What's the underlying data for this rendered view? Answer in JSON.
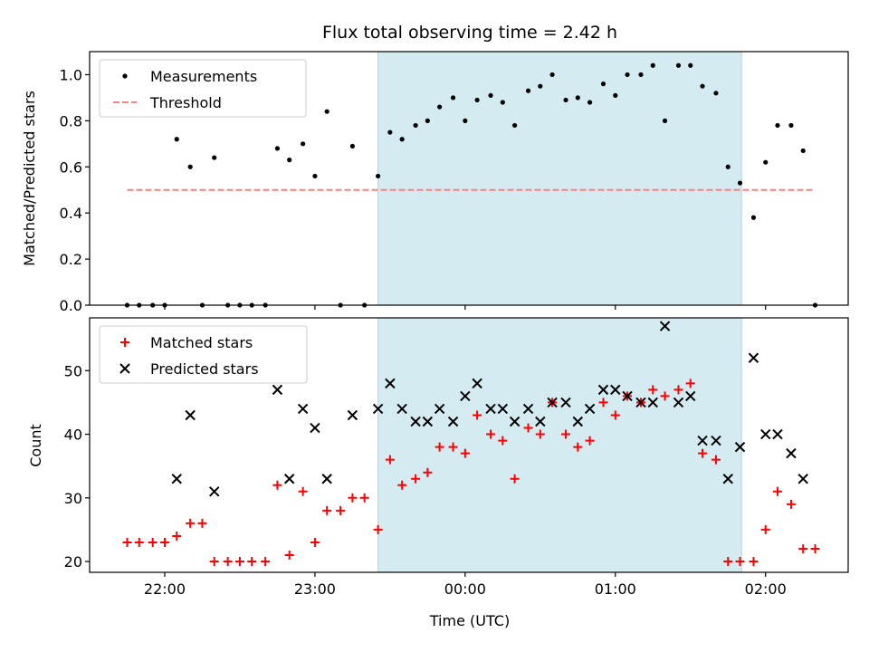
{
  "chart_data": {
    "title": "Flux total observing time = 2.42 h",
    "xlabel": "Time (UTC)",
    "xlim_hours": [
      -2.5,
      2.55
    ],
    "x_ticks": [
      {
        "value": -2.0,
        "label": "22:00"
      },
      {
        "value": -1.0,
        "label": "23:00"
      },
      {
        "value": 0.0,
        "label": "00:00"
      },
      {
        "value": 1.0,
        "label": "01:00"
      },
      {
        "value": 2.0,
        "label": "02:00"
      }
    ],
    "observing_window_hours": [
      -0.58,
      1.84
    ],
    "highlight_color": "#add8e6",
    "panels": [
      {
        "type": "scatter",
        "ylabel": "Matched/Predicted stars",
        "ylim": [
          0.0,
          1.1
        ],
        "y_ticks": [
          "0.0",
          "0.2",
          "0.4",
          "0.6",
          "0.8",
          "1.0"
        ],
        "legend_position": "upper left",
        "series": [
          {
            "name": "Measurements",
            "marker": "dot",
            "color": "#000000",
            "points": [
              [
                -2.25,
                0.0
              ],
              [
                -2.17,
                0.0
              ],
              [
                -2.08,
                0.0
              ],
              [
                -2.0,
                0.0
              ],
              [
                -1.92,
                0.72
              ],
              [
                -1.83,
                0.6
              ],
              [
                -1.75,
                0.0
              ],
              [
                -1.67,
                0.64
              ],
              [
                -1.58,
                0.0
              ],
              [
                -1.5,
                0.0
              ],
              [
                -1.42,
                0.0
              ],
              [
                -1.33,
                0.0
              ],
              [
                -1.25,
                0.68
              ],
              [
                -1.17,
                0.63
              ],
              [
                -1.08,
                0.7
              ],
              [
                -1.0,
                0.56
              ],
              [
                -0.92,
                0.84
              ],
              [
                -0.83,
                0.0
              ],
              [
                -0.75,
                0.69
              ],
              [
                -0.67,
                0.0
              ],
              [
                -0.58,
                0.56
              ],
              [
                -0.5,
                0.75
              ],
              [
                -0.42,
                0.72
              ],
              [
                -0.33,
                0.78
              ],
              [
                -0.25,
                0.8
              ],
              [
                -0.17,
                0.86
              ],
              [
                -0.08,
                0.9
              ],
              [
                0.0,
                0.8
              ],
              [
                0.08,
                0.89
              ],
              [
                0.17,
                0.91
              ],
              [
                0.25,
                0.88
              ],
              [
                0.33,
                0.78
              ],
              [
                0.42,
                0.93
              ],
              [
                0.5,
                0.95
              ],
              [
                0.58,
                1.0
              ],
              [
                0.67,
                0.89
              ],
              [
                0.75,
                0.9
              ],
              [
                0.83,
                0.88
              ],
              [
                0.92,
                0.96
              ],
              [
                1.0,
                0.91
              ],
              [
                1.08,
                1.0
              ],
              [
                1.17,
                1.0
              ],
              [
                1.25,
                1.04
              ],
              [
                1.33,
                0.8
              ],
              [
                1.42,
                1.04
              ],
              [
                1.5,
                1.04
              ],
              [
                1.58,
                0.95
              ],
              [
                1.67,
                0.92
              ],
              [
                1.75,
                0.6
              ],
              [
                1.83,
                0.53
              ],
              [
                1.92,
                0.38
              ],
              [
                2.0,
                0.62
              ],
              [
                2.08,
                0.78
              ],
              [
                2.17,
                0.78
              ],
              [
                2.25,
                0.67
              ],
              [
                2.33,
                0.0
              ]
            ]
          },
          {
            "name": "Threshold",
            "marker": "dashed-line",
            "color": "#ff7f7f",
            "points": [
              [
                -2.25,
                0.5
              ],
              [
                2.33,
                0.5
              ]
            ]
          }
        ]
      },
      {
        "type": "scatter",
        "ylabel": "Count",
        "ylim": [
          18.3,
          58.3
        ],
        "y_ticks": [
          "20",
          "30",
          "40",
          "50"
        ],
        "legend_position": "upper left",
        "series": [
          {
            "name": "Matched stars",
            "marker": "plus",
            "color": "#ff0000",
            "points": [
              [
                -2.25,
                23
              ],
              [
                -2.17,
                23
              ],
              [
                -2.08,
                23
              ],
              [
                -2.0,
                23
              ],
              [
                -1.92,
                24
              ],
              [
                -1.83,
                26
              ],
              [
                -1.75,
                26
              ],
              [
                -1.67,
                20
              ],
              [
                -1.58,
                20
              ],
              [
                -1.5,
                20
              ],
              [
                -1.42,
                20
              ],
              [
                -1.33,
                20
              ],
              [
                -1.25,
                32
              ],
              [
                -1.17,
                21
              ],
              [
                -1.08,
                31
              ],
              [
                -1.0,
                23
              ],
              [
                -0.92,
                28
              ],
              [
                -0.83,
                28
              ],
              [
                -0.75,
                30
              ],
              [
                -0.67,
                30
              ],
              [
                -0.58,
                25
              ],
              [
                -0.5,
                36
              ],
              [
                -0.42,
                32
              ],
              [
                -0.33,
                33
              ],
              [
                -0.25,
                34
              ],
              [
                -0.17,
                38
              ],
              [
                -0.08,
                38
              ],
              [
                0.0,
                37
              ],
              [
                0.08,
                43
              ],
              [
                0.17,
                40
              ],
              [
                0.25,
                39
              ],
              [
                0.33,
                33
              ],
              [
                0.42,
                41
              ],
              [
                0.5,
                40
              ],
              [
                0.58,
                45
              ],
              [
                0.67,
                40
              ],
              [
                0.75,
                38
              ],
              [
                0.83,
                39
              ],
              [
                0.92,
                45
              ],
              [
                1.0,
                43
              ],
              [
                1.08,
                46
              ],
              [
                1.17,
                45
              ],
              [
                1.25,
                47
              ],
              [
                1.33,
                46
              ],
              [
                1.42,
                47
              ],
              [
                1.5,
                48
              ],
              [
                1.58,
                37
              ],
              [
                1.67,
                36
              ],
              [
                1.75,
                20
              ],
              [
                1.83,
                20
              ],
              [
                1.92,
                20
              ],
              [
                2.0,
                25
              ],
              [
                2.08,
                31
              ],
              [
                2.17,
                29
              ],
              [
                2.25,
                22
              ],
              [
                2.33,
                22
              ]
            ]
          },
          {
            "name": "Predicted stars",
            "marker": "x",
            "color": "#000000",
            "points": [
              [
                -1.92,
                33
              ],
              [
                -1.83,
                43
              ],
              [
                -1.67,
                31
              ],
              [
                -1.25,
                47
              ],
              [
                -1.17,
                33
              ],
              [
                -1.08,
                44
              ],
              [
                -1.0,
                41
              ],
              [
                -0.92,
                33
              ],
              [
                -0.75,
                43
              ],
              [
                -0.58,
                44
              ],
              [
                -0.5,
                48
              ],
              [
                -0.42,
                44
              ],
              [
                -0.33,
                42
              ],
              [
                -0.25,
                42
              ],
              [
                -0.17,
                44
              ],
              [
                -0.08,
                42
              ],
              [
                0.0,
                46
              ],
              [
                0.08,
                48
              ],
              [
                0.17,
                44
              ],
              [
                0.25,
                44
              ],
              [
                0.33,
                42
              ],
              [
                0.42,
                44
              ],
              [
                0.5,
                42
              ],
              [
                0.58,
                45
              ],
              [
                0.67,
                45
              ],
              [
                0.75,
                42
              ],
              [
                0.83,
                44
              ],
              [
                0.92,
                47
              ],
              [
                1.0,
                47
              ],
              [
                1.08,
                46
              ],
              [
                1.17,
                45
              ],
              [
                1.25,
                45
              ],
              [
                1.33,
                57
              ],
              [
                1.42,
                45
              ],
              [
                1.5,
                46
              ],
              [
                1.58,
                39
              ],
              [
                1.67,
                39
              ],
              [
                1.75,
                33
              ],
              [
                1.83,
                38
              ],
              [
                1.92,
                52
              ],
              [
                2.0,
                40
              ],
              [
                2.08,
                40
              ],
              [
                2.17,
                37
              ],
              [
                2.25,
                33
              ]
            ]
          }
        ]
      }
    ]
  }
}
